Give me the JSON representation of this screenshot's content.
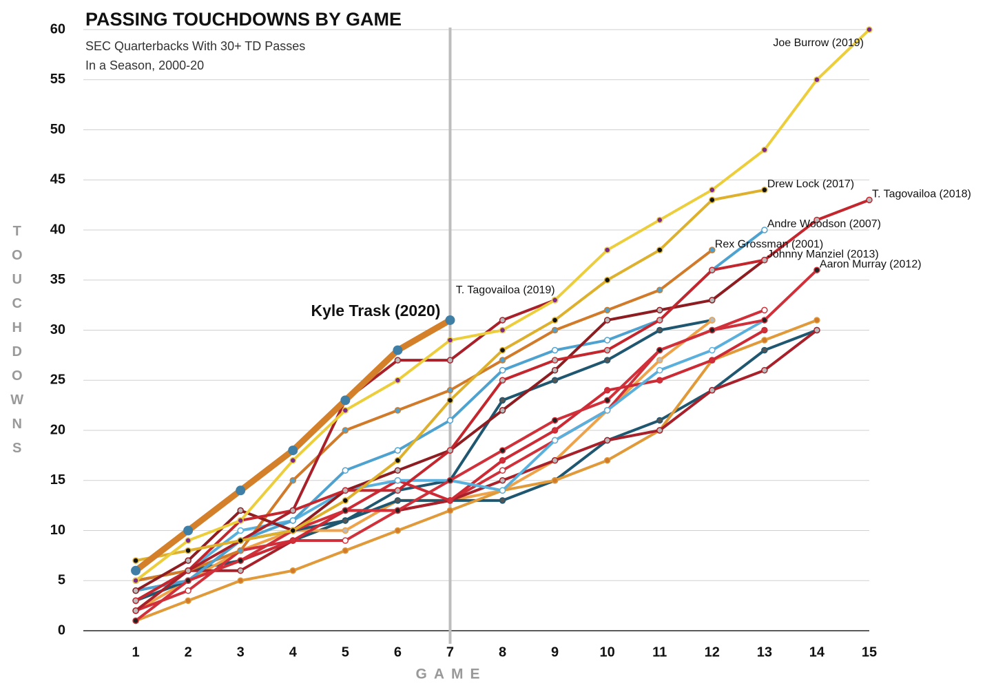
{
  "chart_data": {
    "type": "line",
    "title": "PASSING TOUCHDOWNS BY GAME",
    "subtitle": [
      "SEC Quarterbacks With 30+ TD Passes",
      "In a Season, 2000-20"
    ],
    "x_label": "GAME",
    "y_label": "TOUCHDOWNS",
    "x": [
      1,
      2,
      3,
      4,
      5,
      6,
      7,
      8,
      9,
      10,
      11,
      12,
      13,
      14,
      15
    ],
    "xlim": [
      0,
      15
    ],
    "xticks": [
      1,
      2,
      3,
      4,
      5,
      6,
      7,
      8,
      9,
      10,
      11,
      12,
      13,
      14,
      15
    ],
    "ylim": [
      0,
      60
    ],
    "yticks": [
      0,
      5,
      10,
      15,
      20,
      25,
      30,
      35,
      40,
      45,
      50,
      55,
      60
    ],
    "grid": true,
    "reference_x": 7,
    "series": [
      {
        "color": "#1f5770",
        "marker_color": "#555555",
        "values": [
          5,
          6,
          7,
          9,
          11,
          14,
          15,
          23,
          25,
          27,
          30,
          31,
          null,
          null,
          null
        ]
      },
      {
        "color": "#eea24a",
        "marker_color": "#bbbbbb",
        "values": [
          2,
          5,
          8,
          10,
          10,
          13,
          13,
          14,
          17,
          22,
          27,
          31,
          null,
          null,
          null
        ]
      },
      {
        "color": "#1f5770",
        "marker_color": "#555555",
        "values": [
          3,
          5,
          9,
          10,
          11,
          13,
          13,
          13,
          15,
          19,
          21,
          24,
          28,
          30,
          null
        ]
      },
      {
        "color": "#e09a3a",
        "marker_color": "#d07a2a",
        "values": [
          1,
          3,
          5,
          6,
          8,
          10,
          12,
          14,
          15,
          17,
          20,
          27,
          29,
          31,
          null
        ]
      },
      {
        "color": "#d0303a",
        "marker_color": "#ffffff",
        "values": [
          2,
          4,
          8,
          9,
          9,
          12,
          13,
          16,
          19,
          22,
          28,
          30,
          32,
          null,
          null
        ]
      },
      {
        "color": "#a8202a",
        "marker_color": "#bbbbbb",
        "values": [
          3,
          6,
          6,
          9,
          12,
          12,
          13,
          15,
          17,
          19,
          20,
          24,
          26,
          30,
          null
        ]
      },
      {
        "color": "#cc2a35",
        "marker_color": "#d0303a",
        "values": [
          4,
          5,
          7,
          9,
          12,
          15,
          13,
          17,
          20,
          24,
          25,
          27,
          30,
          null,
          null
        ]
      },
      {
        "color": "#5ab0dc",
        "marker_color": "#ffffff",
        "values": [
          3,
          6,
          10,
          11,
          14,
          15,
          15,
          14,
          19,
          22,
          26,
          28,
          31,
          null,
          null
        ]
      },
      {
        "name": "Rex Grossman (2001)",
        "color": "#d07a2a",
        "marker_color": "#4ea2d0",
        "values": [
          5,
          6,
          8,
          15,
          20,
          22,
          24,
          27,
          30,
          32,
          34,
          38,
          null,
          null,
          null
        ]
      },
      {
        "name": "Andre Woodson (2007)",
        "color": "#4ea2d0",
        "marker_color": "#ffffff",
        "values": [
          4,
          5,
          9,
          11,
          16,
          18,
          21,
          26,
          28,
          29,
          31,
          36,
          40,
          null,
          null
        ]
      },
      {
        "name": "Johnny Manziel (2013)",
        "color": "#8e1d22",
        "marker_color": "#bbbbbb",
        "values": [
          4,
          7,
          12,
          10,
          14,
          16,
          18,
          22,
          26,
          31,
          32,
          33,
          37,
          null,
          null
        ]
      },
      {
        "name": "Aaron Murray (2012)",
        "color": "#d0303a",
        "marker_color": "#222222",
        "values": [
          1,
          5,
          7,
          10,
          12,
          12,
          15,
          18,
          21,
          23,
          28,
          30,
          31,
          36,
          null
        ]
      },
      {
        "name": "T. Tagovailoa (2018)",
        "color": "#c4262e",
        "marker_color": "#bbbbbb",
        "values": [
          3,
          6,
          11,
          12,
          14,
          14,
          18,
          25,
          27,
          28,
          31,
          36,
          37,
          41,
          43
        ]
      },
      {
        "name": "T. Tagovailoa (2019)",
        "color": "#a8202a",
        "marker_color": "#bbbbbb",
        "values": [
          2,
          6,
          9,
          12,
          23,
          27,
          27,
          31,
          33,
          null,
          null,
          null,
          null,
          null,
          null
        ]
      },
      {
        "name": "Drew Lock (2017)",
        "color": "#ddb02e",
        "marker_color": "#111111",
        "values": [
          7,
          8,
          9,
          10,
          13,
          17,
          23,
          28,
          31,
          35,
          38,
          43,
          44,
          null,
          null
        ]
      },
      {
        "name": "Joe Burrow (2019)",
        "color": "#ecce3c",
        "marker_color": "#7b2a8a",
        "values": [
          5,
          9,
          11,
          17,
          22,
          25,
          29,
          30,
          33,
          38,
          41,
          44,
          48,
          55,
          60
        ]
      },
      {
        "name": "Kyle Trask (2020)",
        "color": "#d4802a",
        "marker_color": "#3f7fa6",
        "emphasis": true,
        "values": [
          6,
          10,
          14,
          18,
          23,
          28,
          31,
          null,
          null,
          null,
          null,
          null,
          null,
          null,
          null
        ]
      }
    ]
  }
}
